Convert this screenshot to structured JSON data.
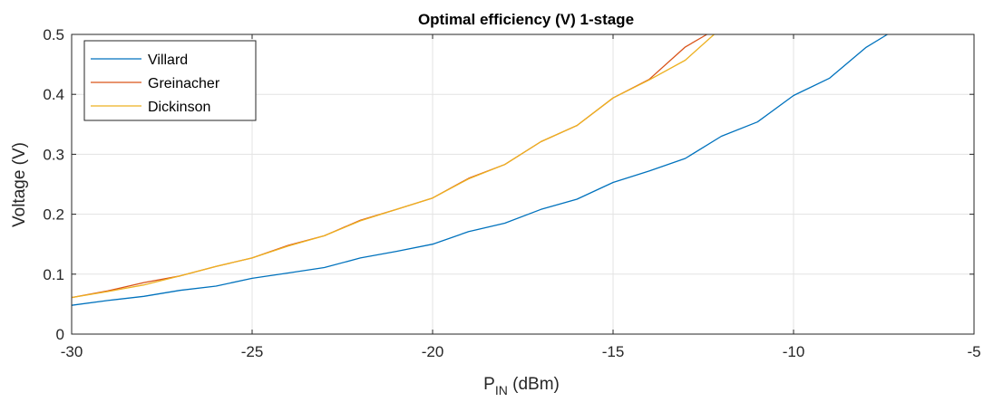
{
  "chart_data": {
    "type": "line",
    "title": "Optimal efficiency (V) 1-stage",
    "xlabel": {
      "main": "P",
      "subscript": "IN",
      "suffix": " (dBm)"
    },
    "ylabel": "Voltage (V)",
    "xlim": [
      -30,
      -5
    ],
    "ylim": [
      0,
      0.5
    ],
    "xticks": [
      -30,
      -25,
      -20,
      -15,
      -10,
      -5
    ],
    "yticks": [
      0,
      0.1,
      0.2,
      0.3,
      0.4,
      0.5
    ],
    "xtick_labels": [
      "-30",
      "-25",
      "-20",
      "-15",
      "-10",
      "-5"
    ],
    "ytick_labels": [
      "0",
      "0.1",
      "0.2",
      "0.3",
      "0.4",
      "0.5"
    ],
    "grid": true,
    "legend_position": "top-left",
    "series": [
      {
        "name": "Villard",
        "color": "#0072BD",
        "x": [
          -30,
          -29,
          -28,
          -27,
          -26,
          -25,
          -24,
          -23,
          -22,
          -21,
          -20,
          -19,
          -18,
          -17,
          -16,
          -15,
          -14,
          -13,
          -12,
          -11,
          -10,
          -9,
          -8,
          -7.4
        ],
        "y": [
          0.048,
          0.056,
          0.063,
          0.073,
          0.08,
          0.093,
          0.102,
          0.111,
          0.127,
          0.138,
          0.15,
          0.171,
          0.185,
          0.208,
          0.225,
          0.253,
          0.272,
          0.293,
          0.33,
          0.354,
          0.398,
          0.427,
          0.478,
          0.5
        ]
      },
      {
        "name": "Greinacher",
        "color": "#D95319",
        "x": [
          -30,
          -29,
          -28,
          -27,
          -26,
          -25,
          -24,
          -23,
          -22,
          -21,
          -20,
          -19,
          -18,
          -17,
          -16,
          -15,
          -14,
          -13,
          -12.4
        ],
        "y": [
          0.061,
          0.072,
          0.086,
          0.097,
          0.113,
          0.127,
          0.148,
          0.164,
          0.19,
          0.208,
          0.227,
          0.26,
          0.283,
          0.321,
          0.348,
          0.394,
          0.425,
          0.479,
          0.5
        ]
      },
      {
        "name": "Dickinson",
        "color": "#EDB120",
        "x": [
          -30,
          -29,
          -28,
          -27,
          -26,
          -25,
          -24,
          -23,
          -22,
          -21,
          -20,
          -19,
          -18,
          -17,
          -16,
          -15,
          -14,
          -13,
          -12.2
        ],
        "y": [
          0.061,
          0.071,
          0.082,
          0.097,
          0.113,
          0.127,
          0.147,
          0.164,
          0.189,
          0.208,
          0.227,
          0.259,
          0.283,
          0.321,
          0.348,
          0.394,
          0.424,
          0.457,
          0.5
        ]
      }
    ]
  }
}
